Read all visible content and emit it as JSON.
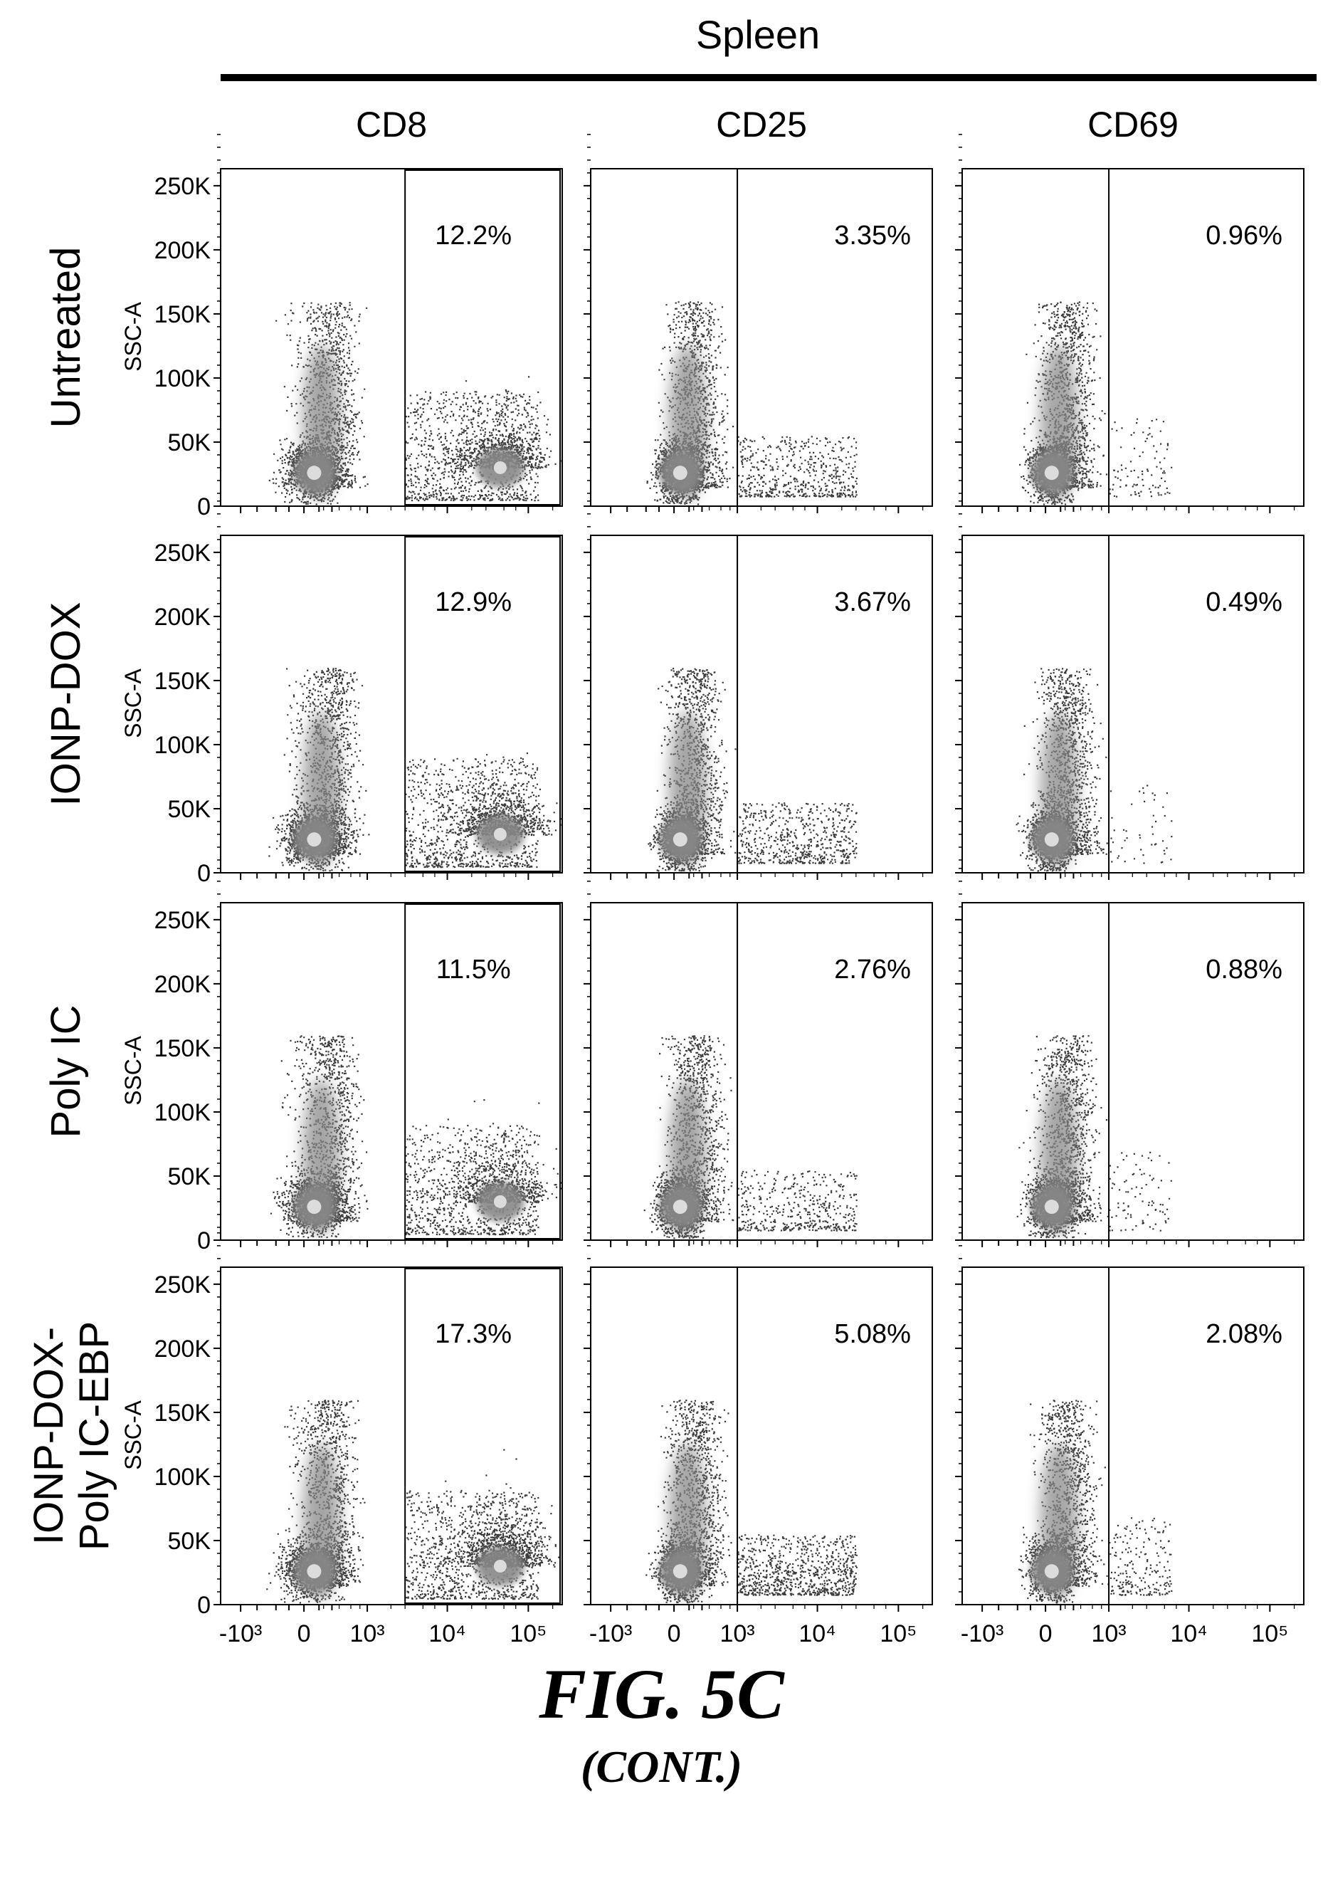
{
  "header": {
    "tissue": "Spleen",
    "columns": [
      "CD8",
      "CD25",
      "CD69"
    ]
  },
  "rows": [
    {
      "label_lines": [
        "Untreated"
      ]
    },
    {
      "label_lines": [
        "IONP-DOX"
      ]
    },
    {
      "label_lines": [
        "Poly IC"
      ]
    },
    {
      "label_lines": [
        "IONP-DOX-",
        "Poly IC-EBP"
      ]
    }
  ],
  "chart_data": {
    "type": "scatter",
    "plot_kind": "flow cytometry density dot plots",
    "ylabel": "SSC-A",
    "y_tick_labels": [
      "0",
      "50K",
      "100K",
      "150K",
      "200K",
      "250K"
    ],
    "y_tick_values": [
      0,
      50000,
      100000,
      150000,
      200000,
      250000
    ],
    "ylim": [
      0,
      262144
    ],
    "x_scale": "biexponential",
    "x_tick_labels": [
      "-10³",
      "0",
      "10³",
      "10⁴",
      "10⁵"
    ],
    "x_tick_values": [
      -1000,
      0,
      1000,
      10000,
      100000
    ],
    "xlim": [
      -1800,
      262144
    ],
    "gate_threshold": {
      "CD8": 3000,
      "CD25": 1000,
      "CD69": 1000
    },
    "gate_percentages": [
      [
        "12.2%",
        "3.35%",
        "0.96%"
      ],
      [
        "12.9%",
        "3.67%",
        "0.49%"
      ],
      [
        "11.5%",
        "2.76%",
        "0.88%"
      ],
      [
        "17.3%",
        "5.08%",
        "2.08%"
      ]
    ],
    "colors": {
      "dots": "#3a3a3a",
      "core": "#888888",
      "hotspot": "#dcdcdc"
    }
  },
  "figure": {
    "label": "FIG. 5C",
    "continuation": "(CONT.)"
  }
}
